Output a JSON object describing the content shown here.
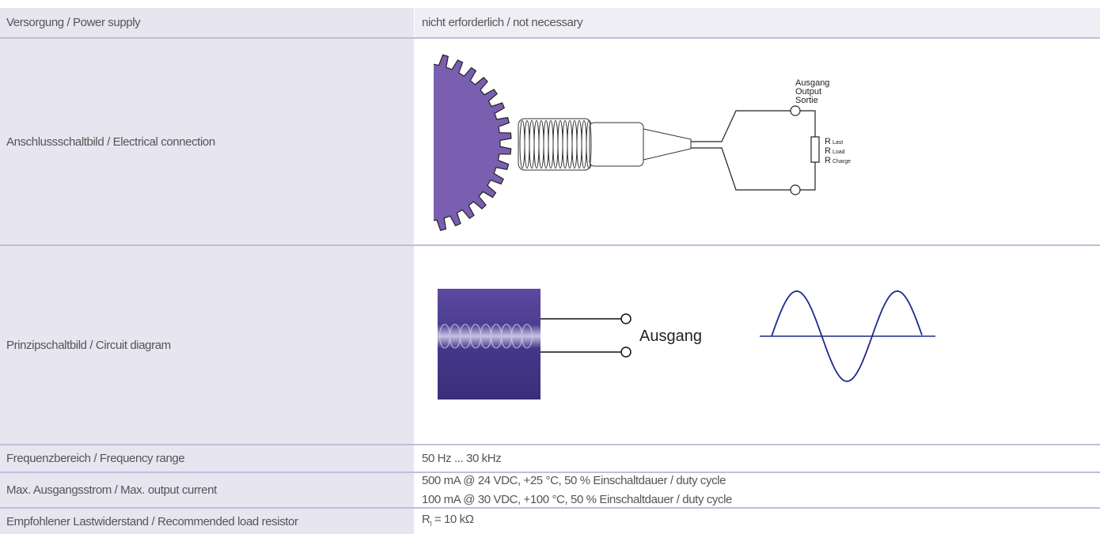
{
  "rows": [
    {
      "label": "Versorgung / Power supply",
      "value": "nicht erforderlich / not necessary"
    },
    {
      "label": "Anschlussschaltbild / Electrical connection",
      "diagram": {
        "output_labels": [
          "Ausgang",
          "Output",
          "Sortie"
        ],
        "resistor_symbol": "R",
        "resistor_labels": [
          "Last",
          "Load",
          "Charge"
        ]
      }
    },
    {
      "label": "Prinzipschaltbild / Circuit diagram",
      "diagram": {
        "output_label": "Ausgang"
      }
    },
    {
      "label": "Frequenzbereich / Frequency range",
      "value": "50 Hz ... 30 kHz"
    },
    {
      "label": "Max. Ausgangsstrom / Max. output current",
      "values": [
        "500 mA @ 24 VDC, +25 °C, 50 % Einschaltdauer / duty cycle",
        "100 mA @ 30 VDC, +100 °C, 50 % Einschaltdauer / duty cycle"
      ]
    },
    {
      "label": "Empfohlener Lastwiderstand / Recommended load resistor",
      "value": {
        "symbol": "R",
        "subscript": "l",
        "text": "= 10 kΩ"
      }
    }
  ]
}
